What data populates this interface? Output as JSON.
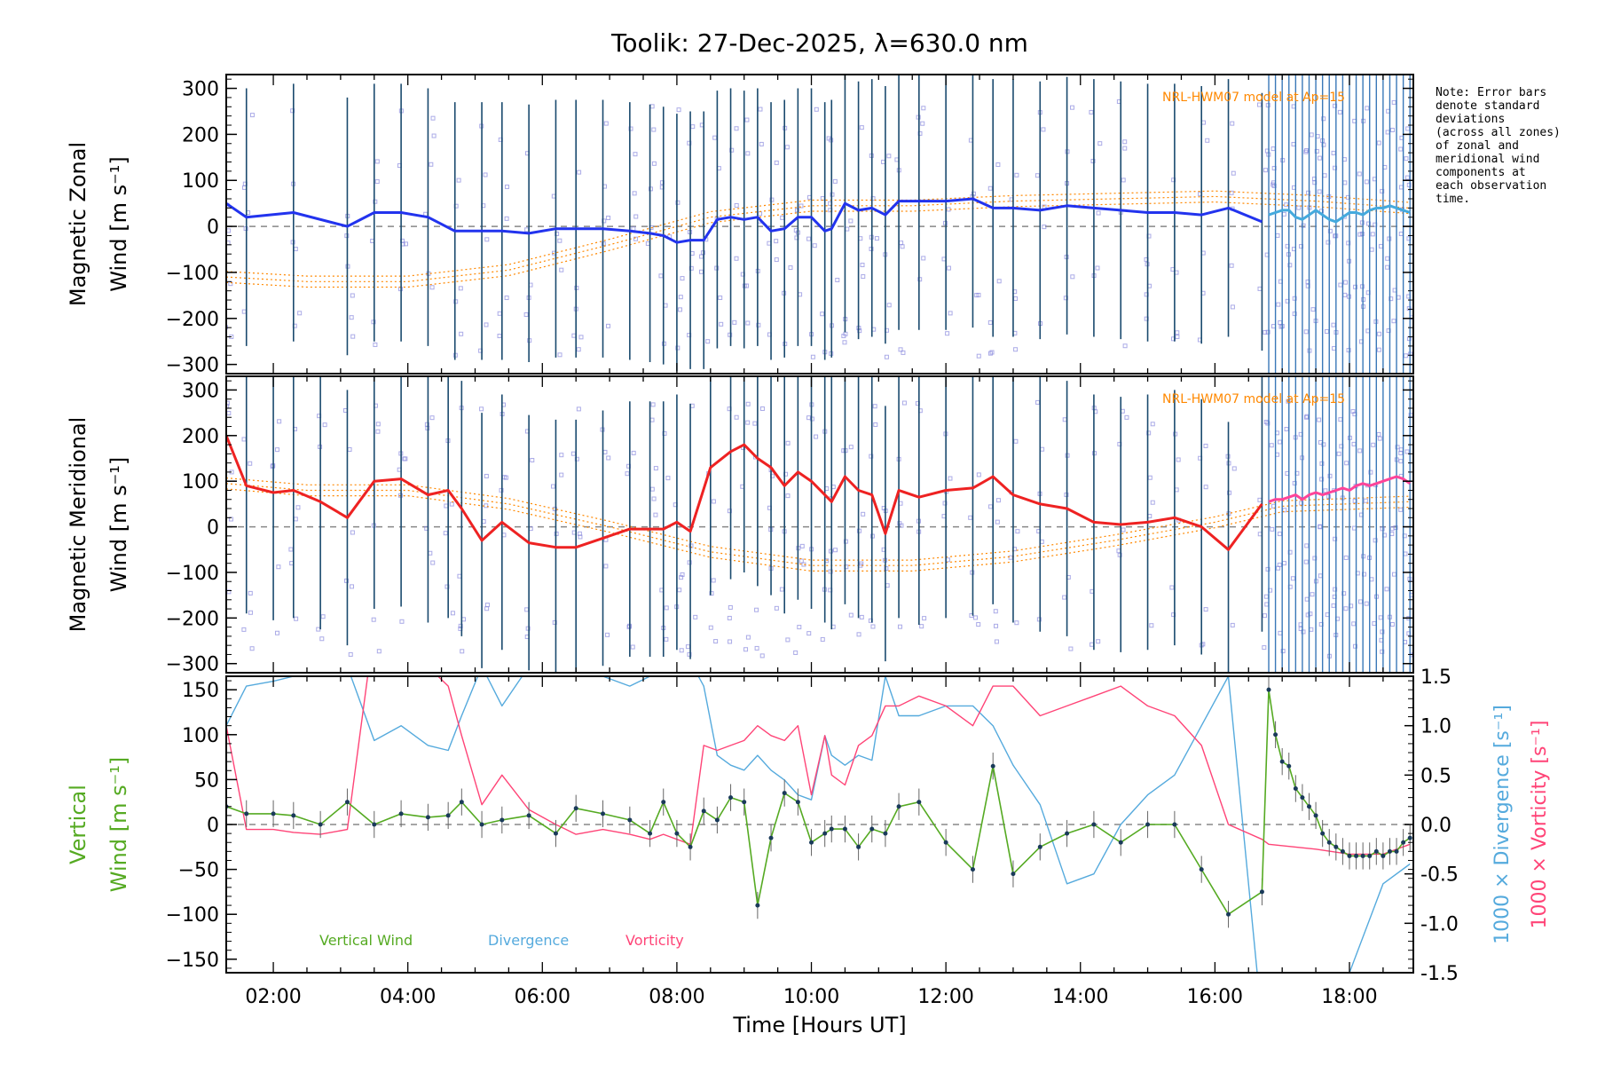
{
  "title": "Toolik: 27-Dec-2025, λ=630.0 nm",
  "note_lines": [
    "Note: Error bars",
    "denote standard",
    "deviations",
    "(across all zones)",
    "of zonal and",
    "meridional wind",
    "components at",
    "each observation",
    "time."
  ],
  "colors": {
    "zonal": "#2233ee",
    "zonal_late": "#44aadd",
    "meridional": "#ee2222",
    "meridional_late": "#ff4499",
    "errorbar": "#1a4a6e",
    "errorbar_late": "#3a78b8",
    "zone_points": "#8888dd",
    "model": "#ff8800",
    "vertical": "#55aa22",
    "divergence": "#55aadd",
    "vorticity": "#ff4477",
    "zero_line": "#888888"
  },
  "chart_data": [
    {
      "type": "line",
      "title": "Toolik: 27-Dec-2025, λ=630.0 nm",
      "ylabel": "Magnetic Zonal Wind [m s⁻¹]",
      "ylabel_lines": [
        "Magnetic Zonal",
        "Wind [m s⁻¹]"
      ],
      "ylim": [
        -320,
        330
      ],
      "yticks": [
        -300,
        -200,
        -100,
        0,
        100,
        200,
        300
      ],
      "model_label": "NRL-HWM07 model at Ap=15",
      "series": [
        {
          "name": "Zonal wind",
          "x": [
            1.3,
            1.6,
            2.3,
            3.1,
            3.5,
            3.9,
            4.3,
            4.7,
            5.1,
            5.4,
            5.8,
            6.2,
            6.5,
            6.9,
            7.3,
            7.6,
            7.8,
            8.0,
            8.2,
            8.4,
            8.6,
            8.8,
            9.0,
            9.2,
            9.4,
            9.6,
            9.8,
            10.0,
            10.2,
            10.3,
            10.5,
            10.7,
            10.9,
            11.1,
            11.3,
            11.6,
            12.0,
            12.4,
            12.7,
            13.0,
            13.4,
            13.8,
            14.2,
            14.6,
            15.0,
            15.4,
            15.8,
            16.2,
            16.7
          ],
          "y": [
            50,
            20,
            30,
            0,
            30,
            30,
            20,
            -10,
            -10,
            -10,
            -15,
            -5,
            -5,
            -5,
            -10,
            -15,
            -20,
            -35,
            -30,
            -30,
            15,
            20,
            15,
            20,
            -10,
            -5,
            20,
            20,
            -10,
            -5,
            50,
            35,
            40,
            25,
            55,
            55,
            55,
            60,
            40,
            40,
            35,
            45,
            40,
            35,
            30,
            30,
            25,
            40,
            10
          ]
        },
        {
          "name": "Zonal wind (dense)",
          "x": [
            16.8,
            16.9,
            17.0,
            17.1,
            17.2,
            17.3,
            17.4,
            17.5,
            17.6,
            17.7,
            17.8,
            17.9,
            18.0,
            18.1,
            18.2,
            18.3,
            18.4,
            18.5,
            18.6,
            18.7,
            18.8,
            18.9
          ],
          "y": [
            25,
            30,
            35,
            35,
            20,
            15,
            25,
            35,
            25,
            15,
            10,
            20,
            30,
            30,
            25,
            35,
            40,
            40,
            45,
            40,
            35,
            30
          ]
        },
        {
          "name": "NRL-HWM07 model",
          "x": [
            1.3,
            2.5,
            4.0,
            5.5,
            7.0,
            8.5,
            10.0,
            11.5,
            13.0,
            14.5,
            16.0,
            17.5,
            18.9
          ],
          "y": [
            -110,
            -120,
            -120,
            -95,
            -40,
            20,
            45,
            45,
            55,
            60,
            65,
            55,
            40
          ]
        }
      ]
    },
    {
      "type": "line",
      "ylabel": "Magnetic Meridional Wind [m s⁻¹]",
      "ylabel_lines": [
        "Magnetic Meridional",
        "Wind [m s⁻¹]"
      ],
      "ylim": [
        -320,
        330
      ],
      "yticks": [
        -300,
        -200,
        -100,
        0,
        100,
        200,
        300
      ],
      "model_label": "NRL-HWM07 model at Ap=15",
      "series": [
        {
          "name": "Meridional wind",
          "x": [
            1.3,
            1.6,
            2.0,
            2.3,
            2.7,
            3.1,
            3.5,
            3.9,
            4.3,
            4.6,
            4.8,
            5.1,
            5.4,
            5.8,
            6.2,
            6.5,
            6.9,
            7.3,
            7.6,
            7.8,
            8.0,
            8.2,
            8.5,
            8.8,
            9.0,
            9.2,
            9.4,
            9.6,
            9.8,
            10.0,
            10.2,
            10.3,
            10.5,
            10.7,
            10.9,
            11.1,
            11.3,
            11.6,
            12.0,
            12.4,
            12.7,
            13.0,
            13.4,
            13.8,
            14.2,
            14.6,
            15.0,
            15.4,
            15.8,
            16.2,
            16.7
          ],
          "y": [
            200,
            90,
            75,
            80,
            55,
            20,
            100,
            105,
            70,
            80,
            40,
            -30,
            10,
            -35,
            -45,
            -45,
            -25,
            -5,
            -5,
            -5,
            10,
            -10,
            130,
            165,
            180,
            150,
            130,
            90,
            120,
            100,
            70,
            55,
            110,
            80,
            70,
            -15,
            80,
            65,
            80,
            85,
            110,
            70,
            50,
            40,
            10,
            5,
            10,
            20,
            0,
            -50,
            50
          ]
        },
        {
          "name": "Meridional wind (dense)",
          "x": [
            16.8,
            16.9,
            17.0,
            17.1,
            17.2,
            17.3,
            17.4,
            17.5,
            17.6,
            17.7,
            17.8,
            17.9,
            18.0,
            18.1,
            18.2,
            18.3,
            18.4,
            18.5,
            18.6,
            18.7,
            18.8,
            18.9
          ],
          "y": [
            55,
            60,
            60,
            65,
            70,
            60,
            70,
            75,
            70,
            75,
            80,
            85,
            80,
            90,
            95,
            90,
            95,
            100,
            105,
            110,
            105,
            95
          ]
        },
        {
          "name": "NRL-HWM07 model",
          "x": [
            1.3,
            2.5,
            4.0,
            5.5,
            7.0,
            8.5,
            10.0,
            11.5,
            13.0,
            14.5,
            16.0,
            17.0,
            18.9
          ],
          "y": [
            95,
            80,
            80,
            50,
            0,
            -55,
            -85,
            -85,
            -65,
            -30,
            10,
            45,
            55
          ]
        }
      ]
    },
    {
      "type": "line",
      "ylabel": "Vertical Wind [m s⁻¹]",
      "ylabel_lines": [
        "Vertical",
        "Wind [m s⁻¹]"
      ],
      "ylim": [
        -165,
        165
      ],
      "yticks": [
        -150,
        -100,
        -50,
        0,
        50,
        100,
        150
      ],
      "y2label_divergence": "1000 × Divergence [s⁻¹]",
      "y2label_vorticity": "1000 × Vorticity [s⁻¹]",
      "y2lim": [
        -1.5,
        1.5
      ],
      "y2ticks": [
        -1.5,
        -1.0,
        -0.5,
        0.0,
        0.5,
        1.0,
        1.5
      ],
      "xlabel": "Time [Hours UT]",
      "xlim": [
        1.3,
        18.95
      ],
      "xticks": [
        "02:00",
        "04:00",
        "06:00",
        "08:00",
        "10:00",
        "12:00",
        "14:00",
        "16:00",
        "18:00"
      ],
      "xtick_values": [
        2,
        4,
        6,
        8,
        10,
        12,
        14,
        16,
        18
      ],
      "legend": [
        "Vertical Wind",
        "Divergence",
        "Vorticity"
      ],
      "series": [
        {
          "name": "Vertical Wind",
          "x": [
            1.3,
            1.6,
            2.0,
            2.3,
            2.7,
            3.1,
            3.5,
            3.9,
            4.3,
            4.6,
            4.8,
            5.1,
            5.4,
            5.8,
            6.2,
            6.5,
            6.9,
            7.3,
            7.6,
            7.8,
            8.0,
            8.2,
            8.4,
            8.6,
            8.8,
            9.0,
            9.2,
            9.4,
            9.6,
            9.8,
            10.0,
            10.2,
            10.3,
            10.5,
            10.7,
            10.9,
            11.1,
            11.3,
            11.6,
            12.0,
            12.4,
            12.7,
            13.0,
            13.4,
            13.8,
            14.2,
            14.6,
            15.0,
            15.4,
            15.8,
            16.2,
            16.7,
            16.8,
            16.9,
            17.0,
            17.1,
            17.2,
            17.3,
            17.4,
            17.5,
            17.6,
            17.7,
            17.8,
            17.9,
            18.0,
            18.1,
            18.2,
            18.3,
            18.4,
            18.5,
            18.6,
            18.7,
            18.8,
            18.9
          ],
          "y": [
            20,
            12,
            12,
            10,
            0,
            25,
            0,
            12,
            8,
            10,
            25,
            0,
            5,
            10,
            -10,
            18,
            12,
            5,
            -10,
            25,
            -10,
            -25,
            15,
            5,
            30,
            25,
            -90,
            -15,
            35,
            25,
            -20,
            -10,
            -5,
            -5,
            -25,
            -5,
            -10,
            20,
            25,
            -20,
            -50,
            65,
            -55,
            -25,
            -10,
            0,
            -20,
            0,
            0,
            -50,
            -100,
            -75,
            150,
            100,
            70,
            65,
            40,
            30,
            20,
            10,
            -10,
            -20,
            -25,
            -30,
            -35,
            -35,
            -35,
            -35,
            -30,
            -35,
            -30,
            -30,
            -20,
            -15
          ]
        },
        {
          "name": "Divergence",
          "x": [
            1.3,
            1.6,
            2.0,
            2.3,
            2.7,
            3.1,
            3.5,
            3.9,
            4.3,
            4.6,
            4.8,
            5.1,
            5.4,
            5.8,
            6.2,
            6.5,
            6.9,
            7.3,
            7.6,
            7.8,
            8.0,
            8.2,
            8.4,
            8.6,
            8.8,
            9.0,
            9.2,
            9.4,
            9.6,
            9.8,
            10.0,
            10.2,
            10.3,
            10.5,
            10.7,
            10.9,
            11.1,
            11.3,
            11.6,
            12.0,
            12.4,
            12.7,
            13.0,
            13.4,
            13.8,
            14.2,
            14.6,
            15.0,
            15.4,
            15.8,
            16.2,
            16.7,
            16.8,
            17.5,
            18.0,
            18.5,
            18.9
          ],
          "y": [
            1.0,
            1.4,
            1.45,
            1.5,
            1.55,
            1.6,
            0.85,
            1.0,
            0.8,
            0.75,
            1.1,
            1.6,
            1.2,
            1.6,
            1.8,
            1.5,
            1.5,
            1.4,
            1.5,
            1.6,
            1.55,
            1.65,
            1.4,
            0.7,
            0.6,
            0.55,
            0.7,
            0.55,
            0.45,
            0.3,
            0.25,
            0.9,
            0.7,
            0.6,
            0.7,
            0.65,
            1.5,
            1.1,
            1.1,
            1.2,
            1.2,
            1.0,
            0.6,
            0.2,
            -0.6,
            -0.5,
            0.0,
            0.3,
            0.5,
            1.0,
            1.5,
            -2.0,
            -2.0,
            -2.5,
            -1.5,
            -0.6,
            -0.4
          ]
        },
        {
          "name": "Vorticity",
          "x": [
            1.3,
            1.6,
            2.0,
            2.3,
            2.7,
            3.1,
            3.5,
            3.9,
            4.3,
            4.6,
            4.8,
            5.1,
            5.4,
            5.8,
            6.2,
            6.5,
            6.9,
            7.3,
            7.6,
            7.8,
            8.0,
            8.2,
            8.4,
            8.6,
            8.8,
            9.0,
            9.2,
            9.4,
            9.6,
            9.8,
            10.0,
            10.2,
            10.3,
            10.5,
            10.7,
            10.9,
            11.1,
            11.3,
            11.6,
            12.0,
            12.4,
            12.7,
            13.0,
            13.4,
            13.8,
            14.2,
            14.6,
            15.0,
            15.4,
            15.8,
            16.2,
            16.7,
            16.8,
            17.5,
            18.0,
            18.5,
            18.9
          ],
          "y": [
            1.0,
            -0.05,
            -0.05,
            -0.08,
            -0.1,
            -0.05,
            2.0,
            1.8,
            1.6,
            1.4,
            0.9,
            0.2,
            0.5,
            0.15,
            0.0,
            -0.1,
            -0.05,
            -0.1,
            -0.15,
            -0.1,
            -0.15,
            -0.2,
            0.8,
            0.75,
            0.8,
            0.85,
            1.0,
            0.9,
            0.85,
            1.0,
            0.3,
            0.9,
            0.5,
            0.4,
            0.8,
            0.9,
            1.2,
            1.2,
            1.3,
            1.2,
            1.0,
            1.4,
            1.4,
            1.1,
            1.2,
            1.3,
            1.4,
            1.2,
            1.1,
            0.8,
            0.0,
            -0.15,
            -0.2,
            -0.25,
            -0.3,
            -0.3,
            -0.2
          ]
        }
      ]
    }
  ]
}
